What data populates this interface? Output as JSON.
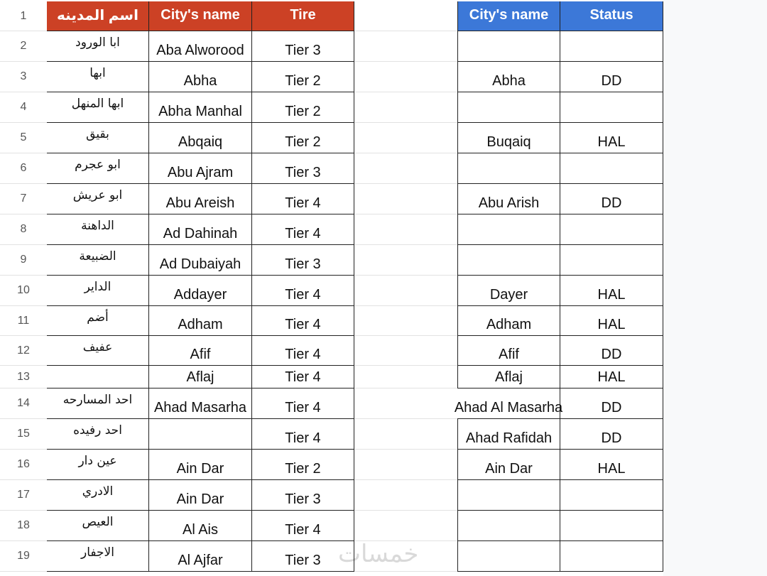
{
  "headers": {
    "arabic_name": "اسم المدينه",
    "city_name": "City's name",
    "tier": "Tire",
    "status_city_name": "City's name",
    "status": "Status"
  },
  "header_colors": {
    "left_table": "#cc4125",
    "right_table": "#3c78d8"
  },
  "rows": [
    {
      "n": "2",
      "ar": "ابا الورود",
      "city": "Aba Alworood",
      "tier": "Tier 3",
      "city2": "",
      "status": ""
    },
    {
      "n": "3",
      "ar": "ابها",
      "city": "Abha",
      "tier": "Tier 2",
      "city2": "Abha",
      "status": "DD"
    },
    {
      "n": "4",
      "ar": "ابها المنهل",
      "city": "Abha Manhal",
      "tier": "Tier 2",
      "city2": "",
      "status": ""
    },
    {
      "n": "5",
      "ar": "بقيق",
      "city": "Abqaiq",
      "tier": "Tier 2",
      "city2": "Buqaiq",
      "status": "HAL"
    },
    {
      "n": "6",
      "ar": "ابو عجرم",
      "city": "Abu Ajram",
      "tier": "Tier 3",
      "city2": "",
      "status": ""
    },
    {
      "n": "7",
      "ar": "ابو عريش",
      "city": "Abu Areish",
      "tier": "Tier 4",
      "city2": "Abu Arish",
      "status": "DD"
    },
    {
      "n": "8",
      "ar": "الداهنة",
      "city": "Ad Dahinah",
      "tier": "Tier 4",
      "city2": "",
      "status": ""
    },
    {
      "n": "9",
      "ar": "الضبيعة",
      "city": "Ad Dubaiyah",
      "tier": "Tier 3",
      "city2": "",
      "status": ""
    },
    {
      "n": "10",
      "ar": "الداير",
      "city": "Addayer",
      "tier": "Tier 4",
      "city2": "Dayer",
      "status": "HAL"
    },
    {
      "n": "11",
      "ar": "أضم",
      "city": "Adham",
      "tier": "Tier 4",
      "city2": "Adham",
      "status": "HAL"
    },
    {
      "n": "12",
      "ar": "عفيف",
      "city": "Afif",
      "tier": "Tier 4",
      "city2": "Afif",
      "status": "DD"
    },
    {
      "n": "13",
      "ar": "",
      "city": "Aflaj",
      "tier": "Tier 4",
      "city2": "Aflaj",
      "status": "HAL"
    },
    {
      "n": "14",
      "ar": "احد المسارحه",
      "city": "Ahad Masarha",
      "tier": "Tier 4",
      "city2": "Ahad Al Masarha",
      "status": "DD"
    },
    {
      "n": "15",
      "ar": "احد رفيده",
      "city": "",
      "tier": "Tier 4",
      "city2": "Ahad Rafidah",
      "status": "DD"
    },
    {
      "n": "16",
      "ar": "عين دار",
      "city": "Ain Dar",
      "tier": "Tier 2",
      "city2": "Ain Dar",
      "status": "HAL"
    },
    {
      "n": "17",
      "ar": "الادري",
      "city": "Ain Dar",
      "tier": "Tier 3",
      "city2": "",
      "status": ""
    },
    {
      "n": "18",
      "ar": "العيص",
      "city": "Al Ais",
      "tier": "Tier 4",
      "city2": "",
      "status": ""
    },
    {
      "n": "19",
      "ar": "الاجفار",
      "city": "Al Ajfar",
      "tier": "Tier 3",
      "city2": "",
      "status": ""
    }
  ],
  "header_row_number": "1",
  "watermark": "خمسات"
}
